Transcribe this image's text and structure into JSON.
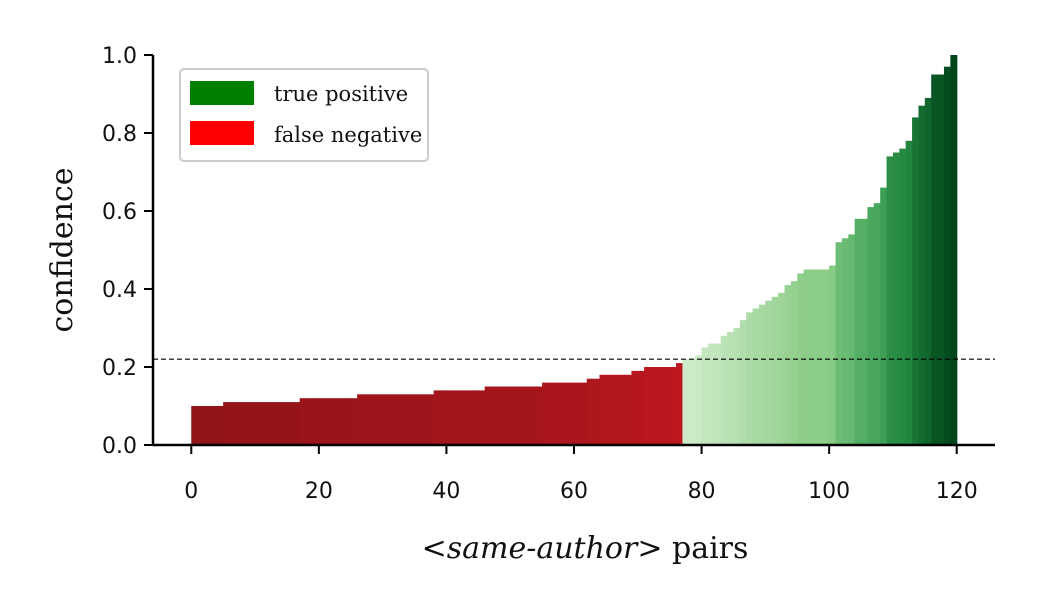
{
  "chart_data": {
    "type": "bar",
    "xlabel_parts": [
      "<",
      "same-author",
      "> pairs"
    ],
    "ylabel": "confidence",
    "xlim": [
      -6,
      126
    ],
    "ylim": [
      0,
      1
    ],
    "xticks": [
      0,
      20,
      40,
      60,
      80,
      100,
      120
    ],
    "xtick_labels": [
      "0",
      "20",
      "40",
      "60",
      "80",
      "100",
      "120"
    ],
    "yticks": [
      0,
      0.2,
      0.4,
      0.6,
      0.8,
      1.0
    ],
    "ytick_labels": [
      "0.0",
      "0.2",
      "0.4",
      "0.6",
      "0.8",
      "1.0"
    ],
    "threshold": 0.22,
    "legend_placement": "top-left",
    "legend": [
      {
        "label": "true positive",
        "color": "#008000"
      },
      {
        "label": "false negative",
        "color": "#ff0000"
      }
    ],
    "series": [
      {
        "name": "false negative",
        "x_start": 0,
        "values": [
          0.1,
          0.1,
          0.1,
          0.1,
          0.1,
          0.11,
          0.11,
          0.11,
          0.11,
          0.11,
          0.11,
          0.11,
          0.11,
          0.11,
          0.11,
          0.11,
          0.11,
          0.12,
          0.12,
          0.12,
          0.12,
          0.12,
          0.12,
          0.12,
          0.12,
          0.12,
          0.13,
          0.13,
          0.13,
          0.13,
          0.13,
          0.13,
          0.13,
          0.13,
          0.13,
          0.13,
          0.13,
          0.13,
          0.14,
          0.14,
          0.14,
          0.14,
          0.14,
          0.14,
          0.14,
          0.14,
          0.15,
          0.15,
          0.15,
          0.15,
          0.15,
          0.15,
          0.15,
          0.15,
          0.15,
          0.16,
          0.16,
          0.16,
          0.16,
          0.16,
          0.16,
          0.16,
          0.17,
          0.17,
          0.18,
          0.18,
          0.18,
          0.18,
          0.18,
          0.19,
          0.19,
          0.2,
          0.2,
          0.2,
          0.2,
          0.2,
          0.21
        ]
      },
      {
        "name": "true positive",
        "x_start": 77,
        "values": [
          0.22,
          0.22,
          0.23,
          0.25,
          0.26,
          0.26,
          0.28,
          0.29,
          0.3,
          0.32,
          0.34,
          0.35,
          0.36,
          0.37,
          0.38,
          0.39,
          0.41,
          0.42,
          0.44,
          0.45,
          0.45,
          0.45,
          0.45,
          0.46,
          0.52,
          0.53,
          0.54,
          0.58,
          0.58,
          0.61,
          0.62,
          0.66,
          0.74,
          0.75,
          0.76,
          0.78,
          0.84,
          0.87,
          0.89,
          0.95,
          0.95,
          0.97,
          1.0
        ]
      }
    ]
  }
}
